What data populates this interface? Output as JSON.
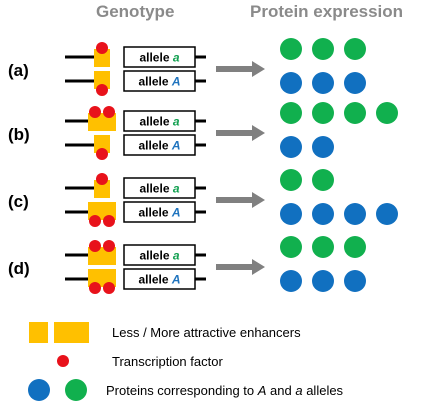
{
  "headers": {
    "genotype": "Genotype",
    "protein_expression": "Protein expression"
  },
  "allele_word": "allele",
  "alleles": {
    "lower": "a",
    "upper": "A"
  },
  "colors": {
    "enhancer": "#FFC000",
    "transcription_factor": "#E8121B",
    "protein_A": "#1170C0",
    "protein_a": "#11B04E",
    "allele_a_text": "#11A050",
    "allele_A_text": "#1E73BE",
    "arrow": "#808080"
  },
  "rows": [
    {
      "label": "(a)",
      "top_enhancer": "small",
      "top_tf": 1,
      "bottom_enhancer": "small",
      "bottom_tf": 1,
      "green_count": 3,
      "blue_count": 3
    },
    {
      "label": "(b)",
      "top_enhancer": "large",
      "top_tf": 2,
      "bottom_enhancer": "small",
      "bottom_tf": 1,
      "green_count": 4,
      "blue_count": 2
    },
    {
      "label": "(c)",
      "top_enhancer": "small",
      "top_tf": 1,
      "bottom_enhancer": "large",
      "bottom_tf": 2,
      "green_count": 2,
      "blue_count": 4
    },
    {
      "label": "(d)",
      "top_enhancer": "large",
      "top_tf": 2,
      "bottom_enhancer": "large",
      "bottom_tf": 2,
      "green_count": 3,
      "blue_count": 3
    }
  ],
  "legend": {
    "enhancers": "Less / More attractive enhancers",
    "tf": "Transcription factor",
    "proteins_prefix": "Proteins corresponding to ",
    "proteins_A": "A",
    "proteins_and": " and ",
    "proteins_a": "a",
    "proteins_suffix": " alleles"
  }
}
